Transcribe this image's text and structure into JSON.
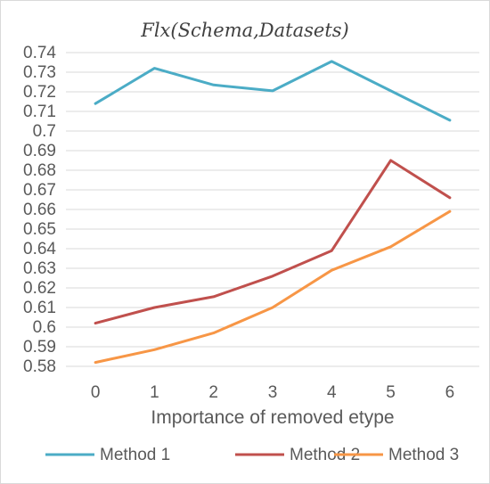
{
  "chart_data": {
    "type": "line",
    "title": "Flx(Schema,Datasets)",
    "xlabel": "Importance of removed etype",
    "ylabel": "",
    "x": [
      0,
      1,
      2,
      3,
      4,
      5,
      6
    ],
    "ylim": [
      0.58,
      0.74
    ],
    "yticks": [
      "0.58",
      "0.59",
      "0.6",
      "0.61",
      "0.62",
      "0.63",
      "0.64",
      "0.65",
      "0.66",
      "0.67",
      "0.68",
      "0.69",
      "0.7",
      "0.71",
      "0.72",
      "0.73",
      "0.74"
    ],
    "grid": "horizontal",
    "legend_position": "bottom",
    "series": [
      {
        "name": "Method 1",
        "color": "#4bacc6",
        "values": [
          0.714,
          0.732,
          0.7235,
          0.7205,
          0.7355,
          0.7205,
          0.7055
        ]
      },
      {
        "name": "Method 2",
        "color": "#c0504d",
        "values": [
          0.602,
          0.61,
          0.6155,
          0.626,
          0.639,
          0.685,
          0.666
        ]
      },
      {
        "name": "Method 3",
        "color": "#f79646",
        "values": [
          0.582,
          0.5885,
          0.597,
          0.61,
          0.629,
          0.641,
          0.659
        ]
      }
    ]
  }
}
